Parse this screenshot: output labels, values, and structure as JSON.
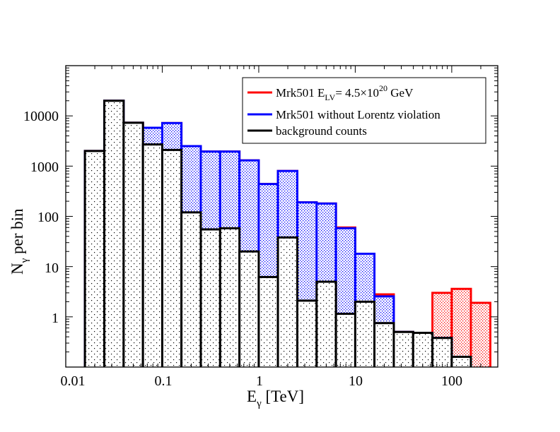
{
  "chart_data": {
    "type": "histogram",
    "x_scale": "log",
    "y_scale": "log",
    "xlim": [
      0.01,
      300
    ],
    "ylim": [
      0.1,
      100000
    ],
    "x_ticks": [
      "0.01",
      "0.1",
      "1",
      "10",
      "100"
    ],
    "y_ticks": [
      "1",
      "10",
      "100",
      "1000",
      "10000"
    ],
    "xlabel": {
      "main": "E",
      "sub": "γ",
      "rest": " [TeV]"
    },
    "ylabel": {
      "main": "N",
      "sub": "γ",
      "rest": " per bin"
    },
    "bin_edges": [
      0.0158,
      0.0251,
      0.0398,
      0.0631,
      0.1,
      0.158,
      0.251,
      0.398,
      0.631,
      1.0,
      1.58,
      2.51,
      3.98,
      6.31,
      10.0,
      15.8,
      25.1,
      39.8,
      63.1,
      100,
      158,
      251
    ],
    "series": [
      {
        "name": "Mrk501 E_LV = 4.5×10^20 GeV",
        "color": "#ff0000",
        "values": [
          2000,
          20000,
          7300,
          5800,
          7200,
          2500,
          1950,
          1950,
          1300,
          440,
          800,
          190,
          180,
          60,
          18,
          2.8,
          0.5,
          0.48,
          3.0,
          3.6,
          1.9
        ]
      },
      {
        "name": "Mrk501 without Lorentz violation",
        "color": "#0000ff",
        "values": [
          2000,
          20000,
          7300,
          5800,
          7200,
          2500,
          1950,
          1950,
          1300,
          440,
          800,
          190,
          180,
          58,
          18,
          2.55,
          0.5,
          0.48,
          0.38,
          0.16,
          null
        ]
      },
      {
        "name": "background counts",
        "color": "#000000",
        "values": [
          2000,
          20000,
          7300,
          2700,
          2100,
          120,
          55,
          58,
          20,
          6.2,
          38,
          2.1,
          5.0,
          1.15,
          2.0,
          0.75,
          0.5,
          0.48,
          0.38,
          0.16,
          null
        ]
      }
    ],
    "legend": {
      "position": "top-right",
      "entries": [
        {
          "label_main": "Mrk501 E",
          "label_sub": "LV",
          "label_mid": "= 4.5×10",
          "label_sup": "20",
          "label_end": " GeV",
          "color": "#ff0000"
        },
        {
          "label": "Mrk501 without Lorentz violation",
          "color": "#0000ff"
        },
        {
          "label": "background counts",
          "color": "#000000"
        }
      ]
    }
  }
}
